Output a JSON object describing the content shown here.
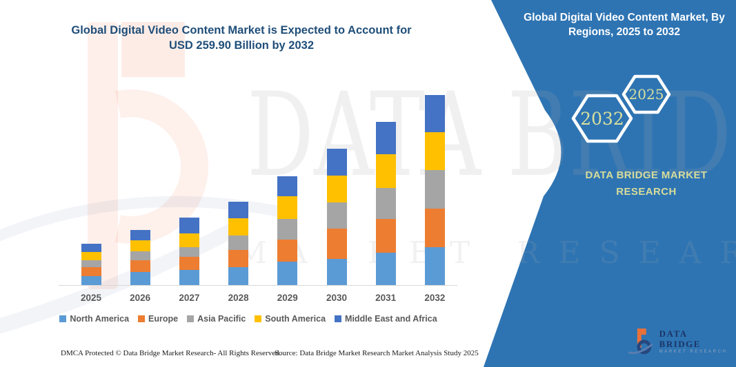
{
  "page_title": {
    "line1": "Global Digital Video Content Market is Expected to Account for",
    "line2": "USD 259.90 Billion by 2032",
    "color": "#1F4E79"
  },
  "side_panel": {
    "title": "Global Digital Video Content Market, By Regions, 2025 to 2032",
    "background_color": "#2E74B3",
    "hexagon_start_year": "2025",
    "hexagon_end_year": "2032",
    "hexagon_text_color": "#D9E09E",
    "brand_text": "DATA BRIDGE MARKET RESEARCH"
  },
  "logo": {
    "name": "DATA BRIDGE",
    "tagline": "MARKET RESEARCH",
    "orange": "#E8713A",
    "navy": "#27477E"
  },
  "watermark": {
    "line1": "DATA BRIDGE",
    "line2": "MARKET RESEARCH"
  },
  "footer": {
    "left": "DMCA Protected © Data Bridge Market Research-  All Rights Reserved.",
    "right": "Source: Data Bridge Market Research  Market Analysis Study 2025"
  },
  "chart_data": {
    "type": "bar",
    "stacked": true,
    "title": "Global Digital Video Content Market is Expected to Account for USD 259.90 Billion by 2032",
    "unit": "USD Billion",
    "xlabel": "",
    "ylabel": "",
    "grid": false,
    "y_axis_visible": false,
    "legend_position": "bottom",
    "categories": [
      "2025",
      "2026",
      "2027",
      "2028",
      "2029",
      "2030",
      "2031",
      "2032"
    ],
    "series": [
      {
        "name": "North America",
        "color": "#5B9BD5",
        "values": [
          12.2,
          17.5,
          20.5,
          24.2,
          32.0,
          35.7,
          44.5,
          51.4
        ]
      },
      {
        "name": "Europe",
        "color": "#ED7D31",
        "values": [
          11.9,
          16.8,
          18.0,
          23.5,
          29.8,
          41.6,
          45.5,
          53.2
        ]
      },
      {
        "name": "Asia Pacific",
        "color": "#A5A5A5",
        "values": [
          9.7,
          12.0,
          13.5,
          20.3,
          28.2,
          36.1,
          42.9,
          52.6
        ]
      },
      {
        "name": "South America",
        "color": "#FFC000",
        "values": [
          11.3,
          14.5,
          19.0,
          23.5,
          31.3,
          36.0,
          45.8,
          51.7
        ]
      },
      {
        "name": "Middle East and Africa",
        "color": "#4472C4",
        "values": [
          11.4,
          14.8,
          21.0,
          22.0,
          27.3,
          36.7,
          44.5,
          51.0
        ]
      }
    ],
    "totals": [
      56.5,
      75.6,
      92.0,
      113.5,
      148.6,
      186.1,
      223.2,
      259.9
    ]
  }
}
